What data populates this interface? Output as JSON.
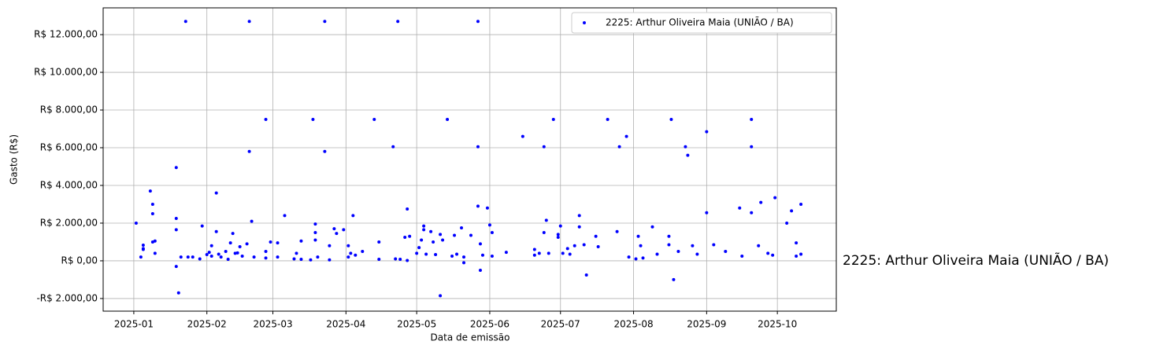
{
  "chart_data": {
    "type": "scatter",
    "xlabel": "Data de emissão",
    "ylabel": "Gasto (R$)",
    "annotation": "2225: Arthur Oliveira Maia (UNIÃO / BA)",
    "legend": "upper right",
    "grid": true,
    "xlim": [
      "2024-12-19",
      "2025-10-26"
    ],
    "xticks": [
      "2025-01",
      "2025-02",
      "2025-03",
      "2025-04",
      "2025-05",
      "2025-06",
      "2025-07",
      "2025-08",
      "2025-09",
      "2025-10"
    ],
    "ylim": [
      -2670,
      13420
    ],
    "yticks": [
      {
        "value": -2000,
        "label": "-R$ 2.000,00"
      },
      {
        "value": 0,
        "label": "R$ 0,00"
      },
      {
        "value": 2000,
        "label": "R$ 2.000,00"
      },
      {
        "value": 4000,
        "label": "R$ 4.000,00"
      },
      {
        "value": 6000,
        "label": "R$ 6.000,00"
      },
      {
        "value": 8000,
        "label": "R$ 8.000,00"
      },
      {
        "value": 10000,
        "label": "R$ 10.000,00"
      },
      {
        "value": 12000,
        "label": "R$ 12.000,00"
      }
    ],
    "series": [
      {
        "name": "2225: Arthur Oliveira Maia (UNIÃO / BA)",
        "color": "#0000ff",
        "x": [
          "2025-01-02",
          "2025-01-04",
          "2025-01-05",
          "2025-01-05",
          "2025-01-05",
          "2025-01-08",
          "2025-01-09",
          "2025-01-09",
          "2025-01-09",
          "2025-01-10",
          "2025-01-10",
          "2025-01-19",
          "2025-01-19",
          "2025-01-19",
          "2025-01-19",
          "2025-01-20",
          "2025-01-23",
          "2025-01-21",
          "2025-01-24",
          "2025-01-26",
          "2025-01-29",
          "2025-01-30",
          "2025-02-01",
          "2025-02-02",
          "2025-02-03",
          "2025-02-03",
          "2025-02-05",
          "2025-02-05",
          "2025-02-06",
          "2025-02-07",
          "2025-02-09",
          "2025-02-10",
          "2025-02-11",
          "2025-02-12",
          "2025-02-13",
          "2025-02-14",
          "2025-02-15",
          "2025-02-16",
          "2025-02-19",
          "2025-02-19",
          "2025-02-20",
          "2025-02-18",
          "2025-02-21",
          "2025-02-26",
          "2025-02-26",
          "2025-02-26",
          "2025-02-28",
          "2025-03-03",
          "2025-03-03",
          "2025-03-06",
          "2025-03-10",
          "2025-03-11",
          "2025-03-13",
          "2025-03-13",
          "2025-03-17",
          "2025-03-18",
          "2025-03-19",
          "2025-03-19",
          "2025-03-19",
          "2025-03-20",
          "2025-03-23",
          "2025-03-23",
          "2025-03-25",
          "2025-03-25",
          "2025-03-27",
          "2025-03-28",
          "2025-03-31",
          "2025-04-02",
          "2025-04-02",
          "2025-04-03",
          "2025-04-04",
          "2025-04-05",
          "2025-04-08",
          "2025-04-13",
          "2025-04-15",
          "2025-04-15",
          "2025-04-21",
          "2025-04-23",
          "2025-04-22",
          "2025-04-24",
          "2025-04-27",
          "2025-04-26",
          "2025-04-28",
          "2025-04-27",
          "2025-05-01",
          "2025-05-02",
          "2025-05-03",
          "2025-05-04",
          "2025-05-04",
          "2025-05-05",
          "2025-05-07",
          "2025-05-08",
          "2025-05-09",
          "2025-05-11",
          "2025-05-11",
          "2025-05-12",
          "2025-05-14",
          "2025-05-16",
          "2025-05-17",
          "2025-05-18",
          "2025-05-20",
          "2025-05-21",
          "2025-05-21",
          "2025-05-24",
          "2025-05-27",
          "2025-05-27",
          "2025-05-27",
          "2025-05-28",
          "2025-05-28",
          "2025-05-29",
          "2025-05-31",
          "2025-06-01",
          "2025-06-02",
          "2025-06-02",
          "2025-06-08",
          "2025-06-15",
          "2025-06-20",
          "2025-06-20",
          "2025-06-22",
          "2025-06-24",
          "2025-06-24",
          "2025-06-25",
          "2025-06-26",
          "2025-06-28",
          "2025-06-30",
          "2025-06-30",
          "2025-07-01",
          "2025-07-02",
          "2025-07-04",
          "2025-07-05",
          "2025-07-07",
          "2025-07-09",
          "2025-07-09",
          "2025-07-11",
          "2025-07-12",
          "2025-07-16",
          "2025-07-17",
          "2025-07-21",
          "2025-07-25",
          "2025-07-26",
          "2025-07-29",
          "2025-07-30",
          "2025-08-02",
          "2025-08-03",
          "2025-08-04",
          "2025-08-05",
          "2025-08-09",
          "2025-08-11",
          "2025-08-16",
          "2025-08-16",
          "2025-08-17",
          "2025-08-18",
          "2025-08-20",
          "2025-08-23",
          "2025-08-24",
          "2025-08-26",
          "2025-08-28",
          "2025-09-01",
          "2025-09-01",
          "2025-09-04",
          "2025-09-09",
          "2025-09-15",
          "2025-09-16",
          "2025-09-20",
          "2025-09-20",
          "2025-09-20",
          "2025-09-24",
          "2025-09-23",
          "2025-09-27",
          "2025-09-29",
          "2025-09-30",
          "2025-10-05",
          "2025-10-07",
          "2025-10-09",
          "2025-10-09",
          "2025-10-11",
          "2025-10-11"
        ],
        "values": [
          2000,
          200,
          830,
          600,
          650,
          3700,
          3000,
          2500,
          1000,
          400,
          1050,
          4950,
          2250,
          1650,
          -300,
          -1700,
          12700,
          200,
          200,
          200,
          100,
          1850,
          330,
          450,
          800,
          250,
          3600,
          1550,
          350,
          200,
          500,
          80,
          950,
          1450,
          400,
          420,
          750,
          250,
          12700,
          5800,
          2100,
          900,
          200,
          7500,
          500,
          150,
          1000,
          950,
          200,
          2400,
          100,
          400,
          1050,
          80,
          50,
          7500,
          1950,
          1500,
          1100,
          200,
          12700,
          5800,
          800,
          50,
          1700,
          1450,
          1650,
          200,
          800,
          400,
          2400,
          300,
          500,
          7500,
          1000,
          80,
          6050,
          12700,
          100,
          80,
          2750,
          1250,
          1300,
          20,
          400,
          700,
          1100,
          1850,
          1650,
          350,
          1550,
          1000,
          330,
          1400,
          -1850,
          1100,
          7500,
          250,
          1350,
          350,
          1750,
          200,
          -100,
          1350,
          12700,
          6050,
          2900,
          900,
          -500,
          300,
          2800,
          1900,
          1500,
          250,
          450,
          6600,
          300,
          600,
          400,
          1500,
          6050,
          2150,
          400,
          7500,
          1250,
          1400,
          1850,
          400,
          650,
          350,
          800,
          2400,
          1800,
          850,
          -750,
          1300,
          750,
          7500,
          1550,
          6050,
          6600,
          200,
          100,
          1300,
          800,
          150,
          1800,
          350,
          1300,
          850,
          7500,
          -1000,
          500,
          6050,
          5600,
          800,
          350,
          2550,
          6850,
          850,
          500,
          2800,
          250,
          6050,
          2550,
          7500,
          3100,
          800,
          400,
          300,
          3350,
          2000,
          2650,
          950,
          250,
          3000,
          350
        ]
      }
    ]
  }
}
